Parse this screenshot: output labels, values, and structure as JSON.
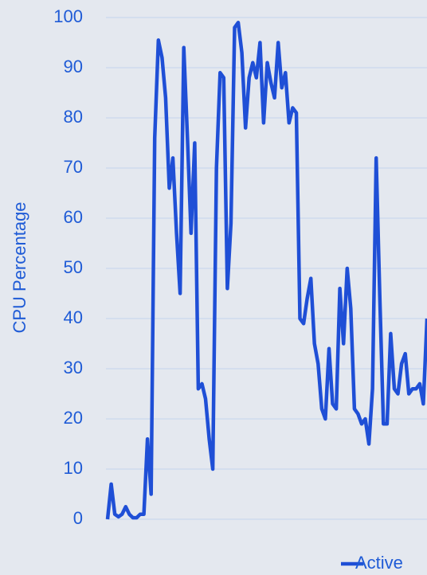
{
  "chart_data": {
    "type": "line",
    "ylabel": "CPU Percentage",
    "series": [
      {
        "name": "Active",
        "color": "#1f4fd6",
        "values": [
          0,
          7,
          1,
          0.5,
          1,
          2.5,
          1,
          0.3,
          0.3,
          1,
          1,
          16,
          5,
          76,
          95.5,
          92,
          84,
          66,
          72,
          57,
          45,
          94,
          76,
          57,
          75,
          26,
          27,
          24,
          16,
          10,
          70,
          89,
          88,
          46,
          59,
          98,
          99,
          93,
          78,
          88,
          91,
          88,
          95,
          79,
          91,
          87,
          84,
          95,
          86,
          89,
          79,
          82,
          81,
          40,
          39,
          44,
          48,
          35,
          31,
          22,
          20,
          34,
          23,
          22,
          46,
          35,
          50,
          42,
          22,
          21,
          19,
          20,
          15,
          26,
          72,
          44,
          19,
          19,
          37,
          26,
          25,
          31,
          33,
          25,
          26,
          26,
          27,
          23,
          40
        ]
      }
    ],
    "ylim": [
      0,
      100
    ],
    "yticks": [
      0,
      10,
      20,
      30,
      40,
      50,
      60,
      70,
      80,
      90,
      100
    ],
    "grid": true,
    "legend": "bottom-right"
  }
}
